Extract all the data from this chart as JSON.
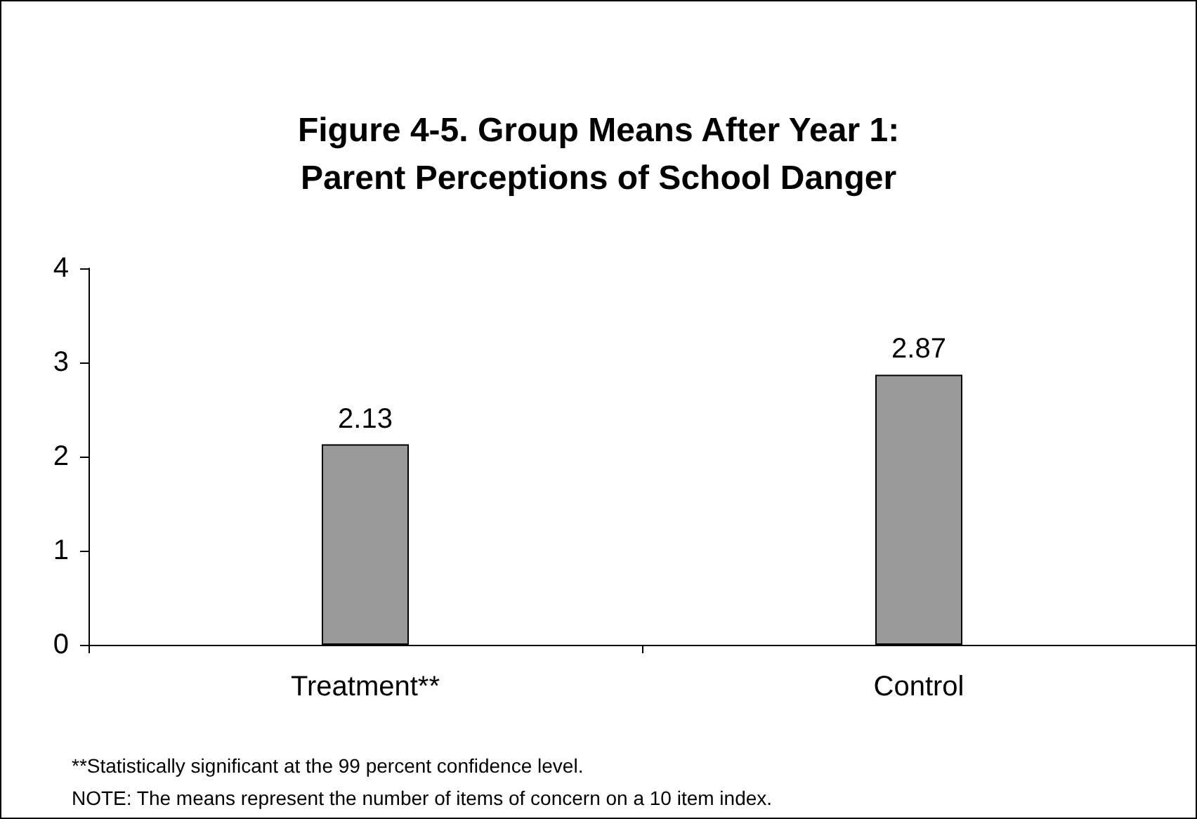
{
  "chart_data": {
    "type": "bar",
    "title": "Figure 4-5. Group Means After Year 1:\nParent Perceptions of School Danger",
    "categories": [
      "Treatment**",
      "Control"
    ],
    "values": [
      2.13,
      2.87
    ],
    "color": "#999999",
    "ylim": [
      0,
      4
    ],
    "yticks": [
      0,
      1,
      2,
      3,
      4
    ],
    "grid": false,
    "data_labels": true,
    "annotations": [
      "**Statistically significant at the 99 percent confidence level.",
      "NOTE: The means represent the number of items of concern on a 10 item index."
    ]
  }
}
